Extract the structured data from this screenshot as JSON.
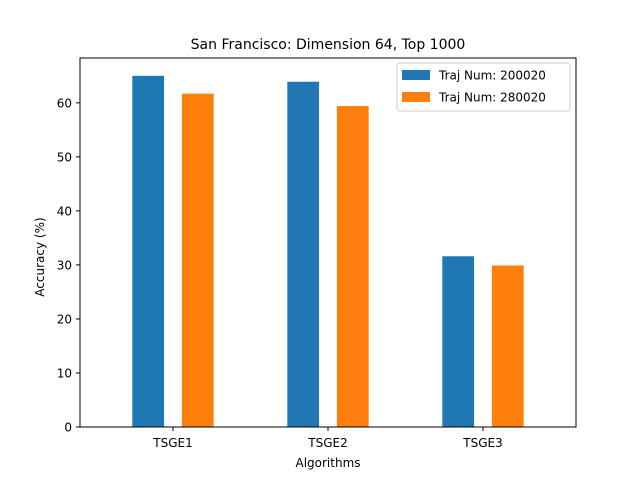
{
  "chart_data": {
    "type": "bar",
    "title": "San Francisco: Dimension 64, Top 1000",
    "xlabel": "Algorithms",
    "ylabel": "Accuracy (%)",
    "categories": [
      "TSGE1",
      "TSGE2",
      "TSGE3"
    ],
    "ylim": [
      0,
      68.3
    ],
    "yticks": [
      0,
      10,
      20,
      30,
      40,
      50,
      60
    ],
    "grid": false,
    "legend_position": "top-right",
    "series": [
      {
        "name": "Traj Num: 200020",
        "color": "#1f77b4",
        "values": [
          65.0,
          63.9,
          31.6
        ]
      },
      {
        "name": "Traj Num: 280020",
        "color": "#ff7f0e",
        "values": [
          61.7,
          59.4,
          29.9
        ]
      }
    ]
  }
}
